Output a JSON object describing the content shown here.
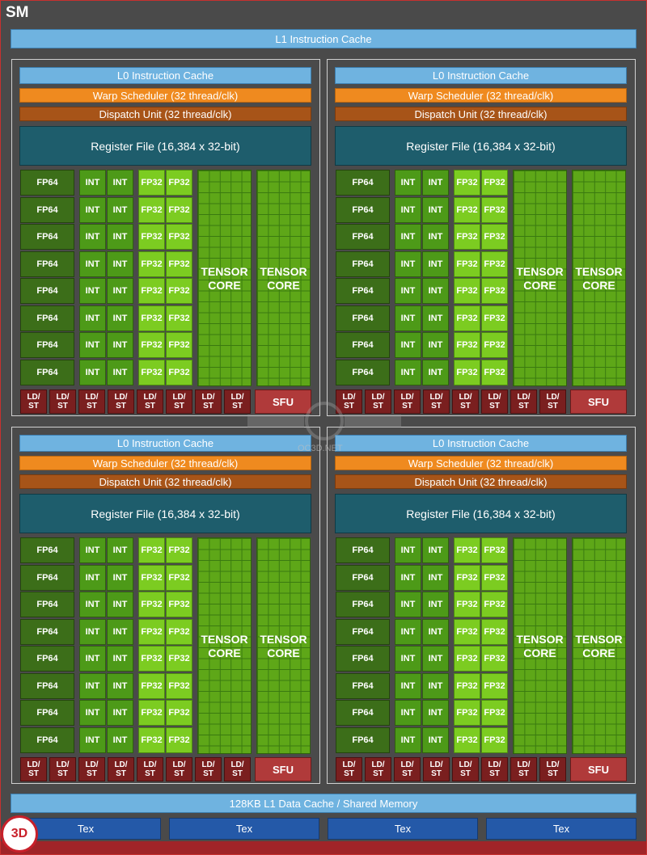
{
  "sm_title": "SM",
  "l1_instruction_cache": "L1 Instruction Cache",
  "quadrant": {
    "l0_cache": "L0 Instruction Cache",
    "warp_scheduler": "Warp Scheduler (32 thread/clk)",
    "dispatch_unit": "Dispatch Unit (32 thread/clk)",
    "register_file": "Register File (16,384 x 32-bit)",
    "fp64": "FP64",
    "int": "INT",
    "fp32": "FP32",
    "tensor_line1": "TENSOR",
    "tensor_line2": "CORE",
    "ldst_line1": "LD/",
    "ldst_line2": "ST",
    "sfu": "SFU"
  },
  "l1_data_cache": "128KB L1 Data Cache / Shared Memory",
  "tex_units": [
    "Tex",
    "Tex",
    "Tex",
    "Tex"
  ],
  "watermark_text": "OC3D.NET",
  "logo_text": "3D",
  "colors": {
    "cache": "#6fb3e0",
    "warp": "#ef8a1f",
    "dispatch": "#a75418",
    "register": "#1e5d6c",
    "fp64": "#3c6e19",
    "int": "#4d9a18",
    "fp32": "#7ccc21",
    "tensor": "#5ea718",
    "ldst": "#7a1f1f",
    "sfu": "#b03a3a",
    "tex": "#2459a8"
  }
}
